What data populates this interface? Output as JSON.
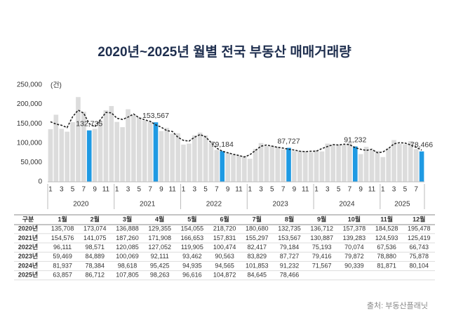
{
  "chart_data": {
    "type": "bar",
    "title": "2020년~2025년 월별 전국 부동산 매매거래량",
    "y_unit": "(건)",
    "ylim": [
      0,
      250000
    ],
    "yticks": [
      0,
      {
        "value": 50000,
        "label": "50,000"
      },
      {
        "value": 100000,
        "label": "100,000"
      },
      {
        "value": 150000,
        "label": "150,000"
      },
      {
        "value": 200000,
        "label": "200,000"
      },
      {
        "value": 250000,
        "label": "250,000"
      }
    ],
    "categories": [
      "1",
      null,
      "3",
      null,
      "5",
      null,
      "7",
      null,
      "9",
      null,
      "11",
      null,
      "1",
      null,
      "3",
      null,
      "5",
      null,
      "7",
      null,
      "9",
      null,
      "11",
      null,
      "1",
      null,
      "3",
      null,
      "5",
      null,
      "7",
      null,
      "9",
      null,
      "11",
      null,
      "1",
      null,
      "3",
      null,
      "5",
      null,
      "7",
      null,
      "9",
      null,
      "11",
      null,
      "1",
      null,
      "3",
      null,
      "5",
      null,
      "7",
      null,
      "9",
      null,
      "11",
      null,
      "1",
      null,
      "3",
      null,
      "5",
      null,
      "7",
      null
    ],
    "years": [
      "2020",
      "2021",
      "2022",
      "2023",
      "2024",
      "2025"
    ],
    "series": [
      {
        "values": [
          135708,
          173074,
          136888,
          129355,
          154055,
          218720,
          180680,
          132735,
          136712,
          157378,
          184528,
          195478,
          154576,
          141075,
          187260,
          171908,
          166653,
          157831,
          155297,
          153567,
          130887,
          139283,
          124593,
          125419,
          96111,
          98571,
          120085,
          127052,
          119905,
          100474,
          82417,
          79184,
          75193,
          70074,
          67536,
          66743,
          59469,
          84889,
          100069,
          92111,
          93462,
          90563,
          83829,
          87727,
          79416,
          79872,
          78880,
          75878,
          81937,
          78384,
          98618,
          95425,
          94935,
          94565,
          101853,
          91232,
          71567,
          90339,
          81871,
          80104,
          63857,
          86712,
          107805,
          98263,
          96616,
          104872,
          84645,
          78466
        ],
        "value_labels": [
          null,
          null,
          null,
          null,
          null,
          null,
          null,
          "132,735",
          null,
          null,
          null,
          null,
          null,
          null,
          null,
          null,
          null,
          null,
          null,
          "153,567",
          null,
          null,
          null,
          null,
          null,
          null,
          null,
          null,
          null,
          null,
          null,
          "79,184",
          null,
          null,
          null,
          null,
          null,
          null,
          null,
          null,
          null,
          null,
          null,
          "87,727",
          null,
          null,
          null,
          null,
          null,
          null,
          null,
          null,
          null,
          null,
          null,
          "91,232",
          null,
          null,
          null,
          null,
          null,
          null,
          null,
          null,
          null,
          null,
          null,
          "78,466"
        ],
        "colors": [
          "#dcdcdc",
          "#dcdcdc",
          "#dcdcdc",
          "#dcdcdc",
          "#dcdcdc",
          "#dcdcdc",
          "#dcdcdc",
          "#1f9ae3",
          "#dcdcdc",
          "#dcdcdc",
          "#dcdcdc",
          "#dcdcdc",
          "#dcdcdc",
          "#dcdcdc",
          "#dcdcdc",
          "#dcdcdc",
          "#dcdcdc",
          "#dcdcdc",
          "#dcdcdc",
          "#1f9ae3",
          "#dcdcdc",
          "#dcdcdc",
          "#dcdcdc",
          "#dcdcdc",
          "#dcdcdc",
          "#dcdcdc",
          "#dcdcdc",
          "#dcdcdc",
          "#dcdcdc",
          "#dcdcdc",
          "#dcdcdc",
          "#1f9ae3",
          "#dcdcdc",
          "#dcdcdc",
          "#dcdcdc",
          "#dcdcdc",
          "#dcdcdc",
          "#dcdcdc",
          "#dcdcdc",
          "#dcdcdc",
          "#dcdcdc",
          "#dcdcdc",
          "#dcdcdc",
          "#1f9ae3",
          "#dcdcdc",
          "#dcdcdc",
          "#dcdcdc",
          "#dcdcdc",
          "#dcdcdc",
          "#dcdcdc",
          "#dcdcdc",
          "#dcdcdc",
          "#dcdcdc",
          "#dcdcdc",
          "#dcdcdc",
          "#1f9ae3",
          "#dcdcdc",
          "#dcdcdc",
          "#dcdcdc",
          "#dcdcdc",
          "#dcdcdc",
          "#dcdcdc",
          "#dcdcdc",
          "#dcdcdc",
          "#dcdcdc",
          "#dcdcdc",
          "#dcdcdc",
          "#1f9ae3"
        ]
      },
      {
        "type": "line",
        "dashed": true,
        "color": "#222222",
        "values": [
          155000,
          149000,
          146000,
          140000,
          168000,
          185000,
          177000,
          150000,
          142000,
          160000,
          179000,
          178000,
          164000,
          161000,
          167000,
          175000,
          165000,
          160000,
          156000,
          147000,
          141000,
          132000,
          130000,
          115000,
          107000,
          105000,
          115000,
          122000,
          116000,
          101000,
          87000,
          79000,
          75000,
          71000,
          68000,
          64000,
          70000,
          81000,
          92000,
          95000,
          92000,
          89000,
          87000,
          84000,
          82000,
          79000,
          78000,
          79000,
          79000,
          86000,
          91000,
          96000,
          95000,
          97000,
          96000,
          88000,
          84000,
          81000,
          84000,
          75000,
          77000,
          86000,
          98000,
          101000,
          100000,
          95000,
          89000,
          82000
        ]
      }
    ]
  },
  "table": {
    "header": [
      "구분",
      "1월",
      "2월",
      "3월",
      "4월",
      "5월",
      "6월",
      "7월",
      "8월",
      "9월",
      "10월",
      "11월",
      "12월"
    ],
    "rows": [
      [
        "2020년",
        "135,708",
        "173,074",
        "136,888",
        "129,355",
        "154,055",
        "218,720",
        "180,680",
        "132,735",
        "136,712",
        "157,378",
        "184,528",
        "195,478"
      ],
      [
        "2021년",
        "154,576",
        "141,075",
        "187,260",
        "171,908",
        "166,653",
        "157,831",
        "155,297",
        "153,567",
        "130,887",
        "139,283",
        "124,593",
        "125,419"
      ],
      [
        "2022년",
        "96,111",
        "98,571",
        "120,085",
        "127,052",
        "119,905",
        "100,474",
        "82,417",
        "79,184",
        "75,193",
        "70,074",
        "67,536",
        "66,743"
      ],
      [
        "2023년",
        "59,469",
        "84,889",
        "100,069",
        "92,111",
        "93,462",
        "90,563",
        "83,829",
        "87,727",
        "79,416",
        "79,872",
        "78,880",
        "75,878"
      ],
      [
        "2024년",
        "81,937",
        "78,384",
        "98,618",
        "95,425",
        "94,935",
        "94,565",
        "101,853",
        "91,232",
        "71,567",
        "90,339",
        "81,871",
        "80,104"
      ],
      [
        "2025년",
        "63,857",
        "86,712",
        "107,805",
        "98,263",
        "96,616",
        "104,872",
        "84,645",
        "78,466"
      ]
    ]
  },
  "source": "출처: 부동산플래닛"
}
